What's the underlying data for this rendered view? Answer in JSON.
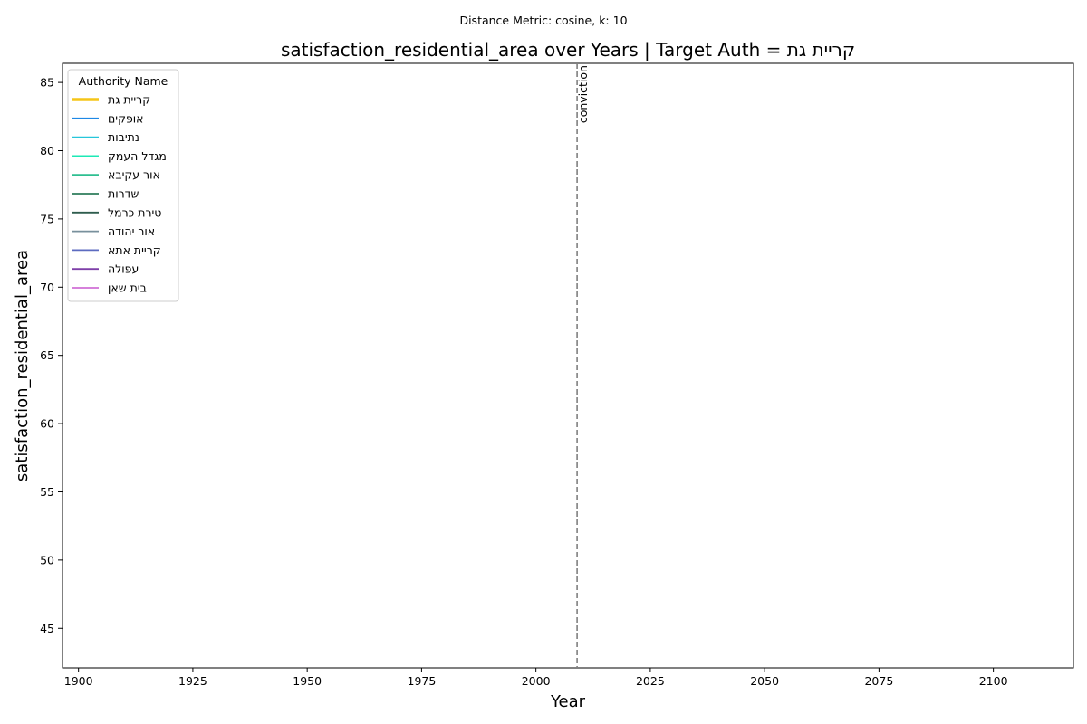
{
  "chart_data": {
    "type": "line",
    "suptitle": "Distance Metric: cosine, k: 10",
    "title": "satisfaction_residential_area over Years | Target Auth = קריית גת",
    "xlabel": "Year",
    "ylabel": "satisfaction_residential_area",
    "xlim": [
      1896.5,
      2117.5
    ],
    "ylim": [
      42.1,
      86.4
    ],
    "xticks": [
      1900,
      1925,
      1950,
      1975,
      2000,
      2025,
      2050,
      2075,
      2100
    ],
    "yticks": [
      45,
      50,
      55,
      60,
      65,
      70,
      75,
      80,
      85
    ],
    "grid": false,
    "legend": {
      "title": "Authority Name",
      "placement": "top-left"
    },
    "series": [
      {
        "name": "קריית גת",
        "color": "#f5c518",
        "values": []
      },
      {
        "name": "אופקים",
        "color": "#1e88e5",
        "values": []
      },
      {
        "name": "נתיבות",
        "color": "#26c6da",
        "values": []
      },
      {
        "name": "מגדל העמק",
        "color": "#1de9b6",
        "values": []
      },
      {
        "name": "אור עקיבא",
        "color": "#2ebf91",
        "values": []
      },
      {
        "name": "שדרות",
        "color": "#2e7d5b",
        "values": []
      },
      {
        "name": "טירת כרמל",
        "color": "#2f5d4e",
        "values": []
      },
      {
        "name": "אור יהודה",
        "color": "#78909c",
        "values": []
      },
      {
        "name": "קריית אתא",
        "color": "#5c6bc0",
        "values": []
      },
      {
        "name": "עפולה",
        "color": "#7e3fa8",
        "values": []
      },
      {
        "name": "בית שאן",
        "color": "#d16fd6",
        "values": []
      }
    ],
    "annotations": [
      {
        "type": "vline",
        "x": 2009,
        "label": "conviction",
        "color": "#808080"
      }
    ]
  }
}
